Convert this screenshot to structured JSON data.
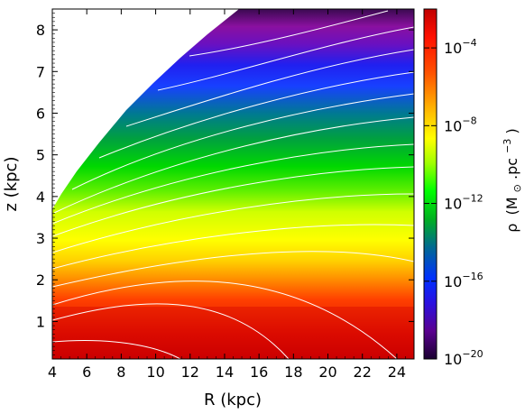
{
  "chart_data": {
    "type": "heatmap",
    "title": "",
    "xlabel": "R (kpc)",
    "ylabel": "z (kpc)",
    "xlim": [
      4,
      25
    ],
    "ylim": [
      0.1,
      8.5
    ],
    "x_ticks": [
      "4",
      "6",
      "8",
      "10",
      "12",
      "14",
      "16",
      "18",
      "20",
      "22",
      "24"
    ],
    "y_ticks": [
      "1",
      "2",
      "3",
      "4",
      "5",
      "6",
      "7",
      "8"
    ],
    "colorbar": {
      "label": "ρ (M⊙.pc−3)",
      "label_parts": {
        "symbol": "ρ",
        "unit_open": "(M",
        "sun": "⊙",
        "unit_mid": ".pc",
        "exp": "−3",
        "unit_close": ")"
      },
      "scale": "log",
      "range": [
        1e-20,
        0.01
      ],
      "ticks": [
        {
          "base": "10",
          "exp": "−4",
          "value_log": -4
        },
        {
          "base": "10",
          "exp": "−8",
          "value_log": -8
        },
        {
          "base": "10",
          "exp": "−12",
          "value_log": -12
        },
        {
          "base": "10",
          "exp": "−16",
          "value_log": -16
        },
        {
          "base": "10",
          "exp": "−20",
          "value_log": -20
        }
      ],
      "colormap": [
        "#2a0a40",
        "#6a00a8",
        "#2020ff",
        "#0070a0",
        "#00d000",
        "#a8ff00",
        "#ffff00",
        "#ffb000",
        "#ff4000",
        "#c80000"
      ]
    },
    "contours": "white isodensity lines",
    "blank_region": "upper-left (white, undefined)"
  }
}
